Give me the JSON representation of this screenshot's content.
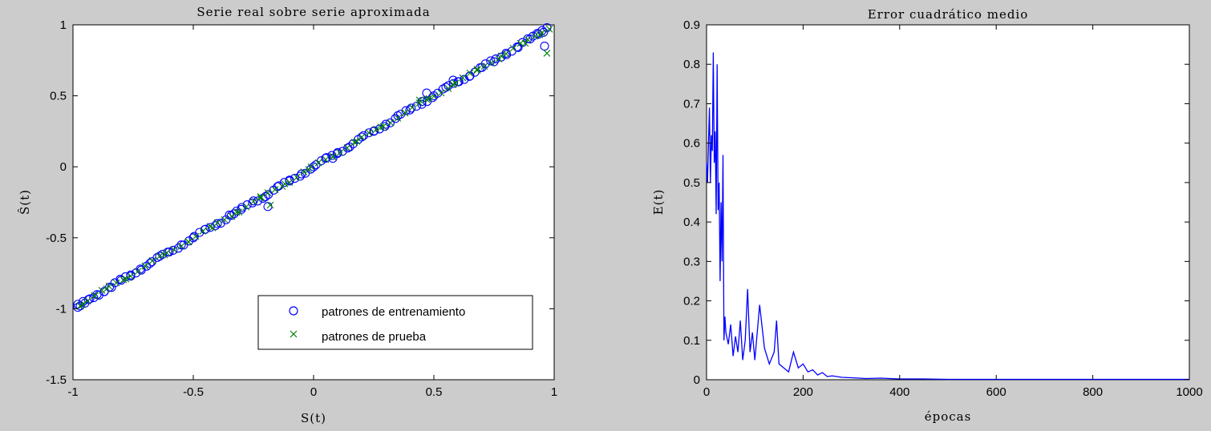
{
  "chart_data": [
    {
      "type": "scatter",
      "title": "Serie real sobre serie aproximada",
      "xlabel": "S(t)",
      "ylabel": "Ŝ(t)",
      "xlim": [
        -1,
        1
      ],
      "ylim": [
        -1.5,
        1
      ],
      "xticks": [
        "-1",
        "-0.5",
        "0",
        "0.5",
        "1"
      ],
      "yticks": [
        "-1.5",
        "-1",
        "-0.5",
        "0",
        "0.5",
        "1"
      ],
      "legend_position": "bottom-right",
      "series": [
        {
          "name": "patrones de entrenamiento",
          "marker": "circle",
          "color": "#0000ff",
          "points": [
            [
              -0.98,
              -0.99
            ],
            [
              -0.97,
              -0.98
            ],
            [
              -0.95,
              -0.96
            ],
            [
              -0.93,
              -0.93
            ],
            [
              -0.9,
              -0.9
            ],
            [
              -0.87,
              -0.88
            ],
            [
              -0.84,
              -0.85
            ],
            [
              -0.8,
              -0.8
            ],
            [
              -0.76,
              -0.77
            ],
            [
              -0.72,
              -0.72
            ],
            [
              -0.68,
              -0.68
            ],
            [
              -0.64,
              -0.63
            ],
            [
              -0.6,
              -0.6
            ],
            [
              -0.55,
              -0.55
            ],
            [
              -0.5,
              -0.5
            ],
            [
              -0.45,
              -0.44
            ],
            [
              -0.4,
              -0.4
            ],
            [
              -0.35,
              -0.34
            ],
            [
              -0.3,
              -0.3
            ],
            [
              -0.25,
              -0.24
            ],
            [
              -0.2,
              -0.21
            ],
            [
              -0.15,
              -0.14
            ],
            [
              -0.1,
              -0.1
            ],
            [
              -0.05,
              -0.05
            ],
            [
              0.0,
              0.0
            ],
            [
              0.05,
              0.06
            ],
            [
              0.1,
              0.1
            ],
            [
              0.15,
              0.14
            ],
            [
              0.2,
              0.21
            ],
            [
              0.25,
              0.25
            ],
            [
              0.3,
              0.3
            ],
            [
              0.35,
              0.36
            ],
            [
              0.4,
              0.4
            ],
            [
              0.45,
              0.46
            ],
            [
              0.5,
              0.5
            ],
            [
              0.55,
              0.56
            ],
            [
              0.6,
              0.6
            ],
            [
              0.65,
              0.64
            ],
            [
              0.7,
              0.7
            ],
            [
              0.75,
              0.74
            ],
            [
              0.8,
              0.8
            ],
            [
              0.85,
              0.84
            ],
            [
              0.9,
              0.9
            ],
            [
              0.93,
              0.94
            ],
            [
              0.95,
              0.96
            ],
            [
              0.97,
              0.98
            ],
            [
              0.96,
              0.85
            ],
            [
              -0.19,
              -0.28
            ],
            [
              0.08,
              0.06
            ],
            [
              -0.33,
              -0.33
            ],
            [
              0.47,
              0.52
            ],
            [
              0.58,
              0.61
            ]
          ]
        },
        {
          "name": "patrones de prueba",
          "marker": "cross",
          "color": "#008000",
          "points": [
            [
              -0.96,
              -0.97
            ],
            [
              -0.91,
              -0.91
            ],
            [
              -0.86,
              -0.86
            ],
            [
              -0.78,
              -0.79
            ],
            [
              -0.7,
              -0.7
            ],
            [
              -0.62,
              -0.62
            ],
            [
              -0.52,
              -0.53
            ],
            [
              -0.42,
              -0.43
            ],
            [
              -0.32,
              -0.32
            ],
            [
              -0.22,
              -0.22
            ],
            [
              -0.12,
              -0.12
            ],
            [
              -0.02,
              -0.02
            ],
            [
              0.08,
              0.07
            ],
            [
              0.18,
              0.18
            ],
            [
              0.28,
              0.28
            ],
            [
              0.38,
              0.38
            ],
            [
              0.44,
              0.47
            ],
            [
              0.48,
              0.48
            ],
            [
              0.58,
              0.58
            ],
            [
              0.68,
              0.68
            ],
            [
              0.78,
              0.78
            ],
            [
              0.88,
              0.87
            ],
            [
              0.94,
              0.93
            ],
            [
              0.97,
              0.8
            ],
            [
              -0.18,
              -0.27
            ],
            [
              0.98,
              0.97
            ]
          ]
        }
      ]
    },
    {
      "type": "line",
      "title": "Error cuadrático medio",
      "xlabel": "épocas",
      "ylabel": "E(t)",
      "xlim": [
        0,
        1000
      ],
      "ylim": [
        0,
        0.9
      ],
      "xticks": [
        "0",
        "200",
        "400",
        "600",
        "800",
        "1000"
      ],
      "yticks": [
        "0",
        "0.1",
        "0.2",
        "0.3",
        "0.4",
        "0.5",
        "0.6",
        "0.7",
        "0.8",
        "0.9"
      ],
      "series": [
        {
          "color": "#0000ff",
          "x": [
            0,
            2,
            4,
            6,
            8,
            10,
            12,
            14,
            16,
            18,
            20,
            22,
            24,
            26,
            28,
            30,
            32,
            34,
            36,
            38,
            40,
            45,
            50,
            55,
            60,
            65,
            70,
            75,
            80,
            85,
            90,
            95,
            100,
            110,
            120,
            130,
            140,
            145,
            150,
            160,
            170,
            180,
            190,
            200,
            210,
            220,
            230,
            240,
            250,
            260,
            280,
            300,
            330,
            360,
            400,
            450,
            500,
            600,
            700,
            800,
            900,
            1000
          ],
          "y": [
            0.55,
            0.5,
            0.6,
            0.69,
            0.5,
            0.62,
            0.58,
            0.83,
            0.55,
            0.63,
            0.42,
            0.8,
            0.43,
            0.5,
            0.25,
            0.45,
            0.3,
            0.57,
            0.1,
            0.16,
            0.12,
            0.09,
            0.14,
            0.06,
            0.11,
            0.07,
            0.15,
            0.05,
            0.1,
            0.23,
            0.07,
            0.12,
            0.05,
            0.19,
            0.08,
            0.04,
            0.07,
            0.15,
            0.04,
            0.03,
            0.02,
            0.07,
            0.03,
            0.04,
            0.02,
            0.025,
            0.012,
            0.018,
            0.008,
            0.01,
            0.006,
            0.005,
            0.003,
            0.004,
            0.002,
            0.002,
            0.001,
            0.001,
            0.001,
            0.001,
            0.001,
            0.001
          ]
        }
      ]
    }
  ]
}
